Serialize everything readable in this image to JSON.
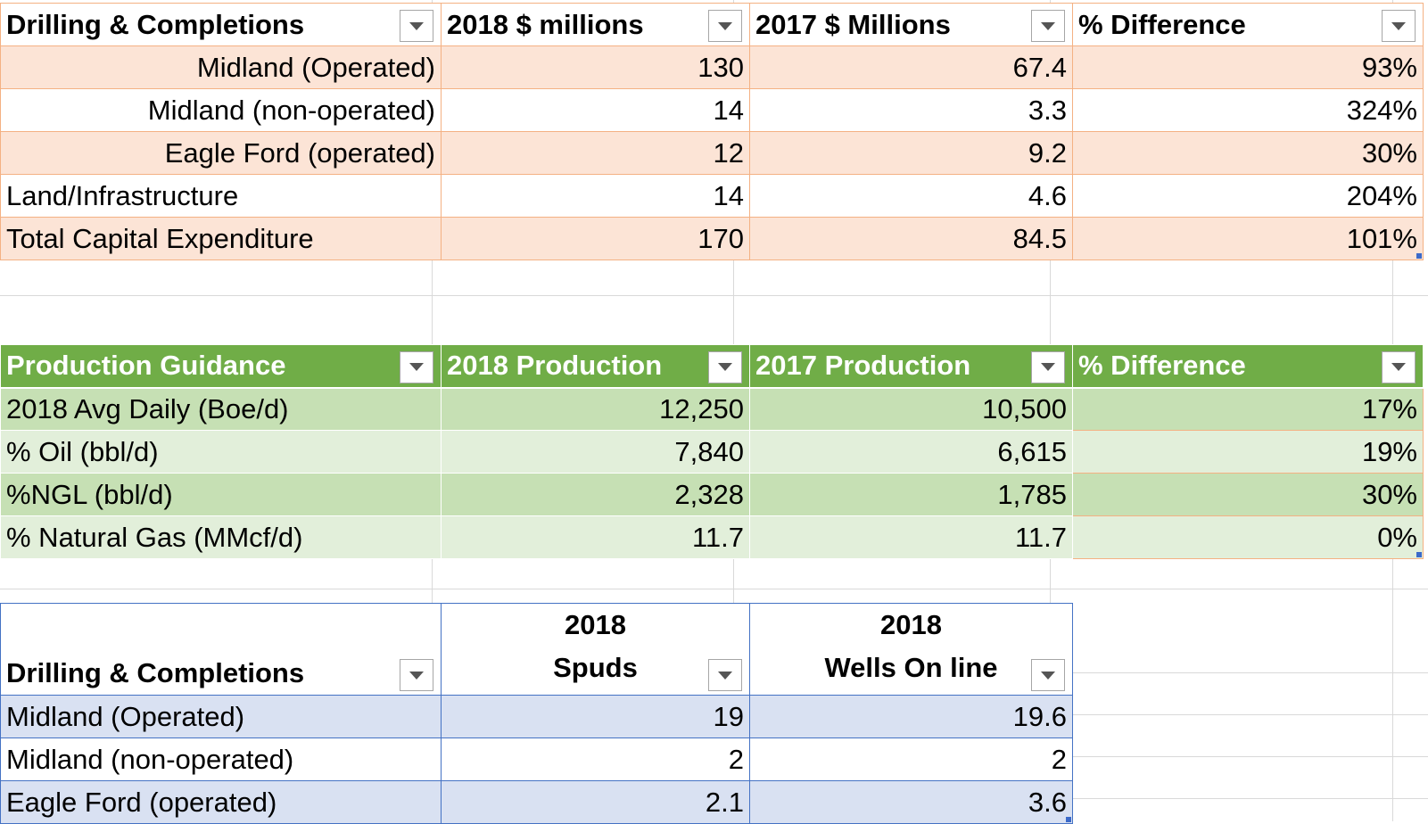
{
  "capex": {
    "headers": [
      "Drilling & Completions",
      "2018 $ millions",
      "2017 $ Millions",
      "% Difference"
    ],
    "rows": [
      {
        "label": "Midland (Operated)",
        "y2018": "130",
        "y2017": "67.4",
        "diff": "93%"
      },
      {
        "label": "Midland (non-operated)",
        "y2018": "14",
        "y2017": "3.3",
        "diff": "324%"
      },
      {
        "label": "Eagle Ford (operated)",
        "y2018": "12",
        "y2017": "9.2",
        "diff": "30%"
      },
      {
        "label": "Land/Infrastructure",
        "y2018": "14",
        "y2017": "4.6",
        "diff": "204%"
      },
      {
        "label": "Total Capital Expenditure",
        "y2018": "170",
        "y2017": "84.5",
        "diff": "101%"
      }
    ]
  },
  "production": {
    "headers": [
      "Production Guidance",
      "2018 Production",
      "2017 Production",
      "% Difference"
    ],
    "rows": [
      {
        "label": "2018 Avg Daily (Boe/d)",
        "y2018": "12,250",
        "y2017": "10,500",
        "diff": "17%"
      },
      {
        "label": "% Oil  (bbl/d)",
        "y2018": "7,840",
        "y2017": "6,615",
        "diff": "19%"
      },
      {
        "label": "%NGL (bbl/d)",
        "y2018": "2,328",
        "y2017": "1,785",
        "diff": "30%"
      },
      {
        "label": "% Natural Gas (MMcf/d)",
        "y2018": "11.7",
        "y2017": "11.7",
        "diff": "0%"
      }
    ]
  },
  "wells": {
    "headers": [
      "Drilling & Completions",
      "2018",
      "Spuds",
      "2018",
      "Wells On line"
    ],
    "rows": [
      {
        "label": "Midland (Operated)",
        "spuds": "19",
        "online": "19.6"
      },
      {
        "label": "Midland (non-operated)",
        "spuds": "2",
        "online": "2"
      },
      {
        "label": "Eagle Ford (operated)",
        "spuds": "2.1",
        "online": "3.6"
      }
    ]
  },
  "colors": {
    "capex_band": "#fce4d6",
    "production_header": "#70ad47",
    "production_band_dark": "#c6e0b4",
    "production_band_light": "#e2efda",
    "wells_band": "#d9e1f2"
  }
}
